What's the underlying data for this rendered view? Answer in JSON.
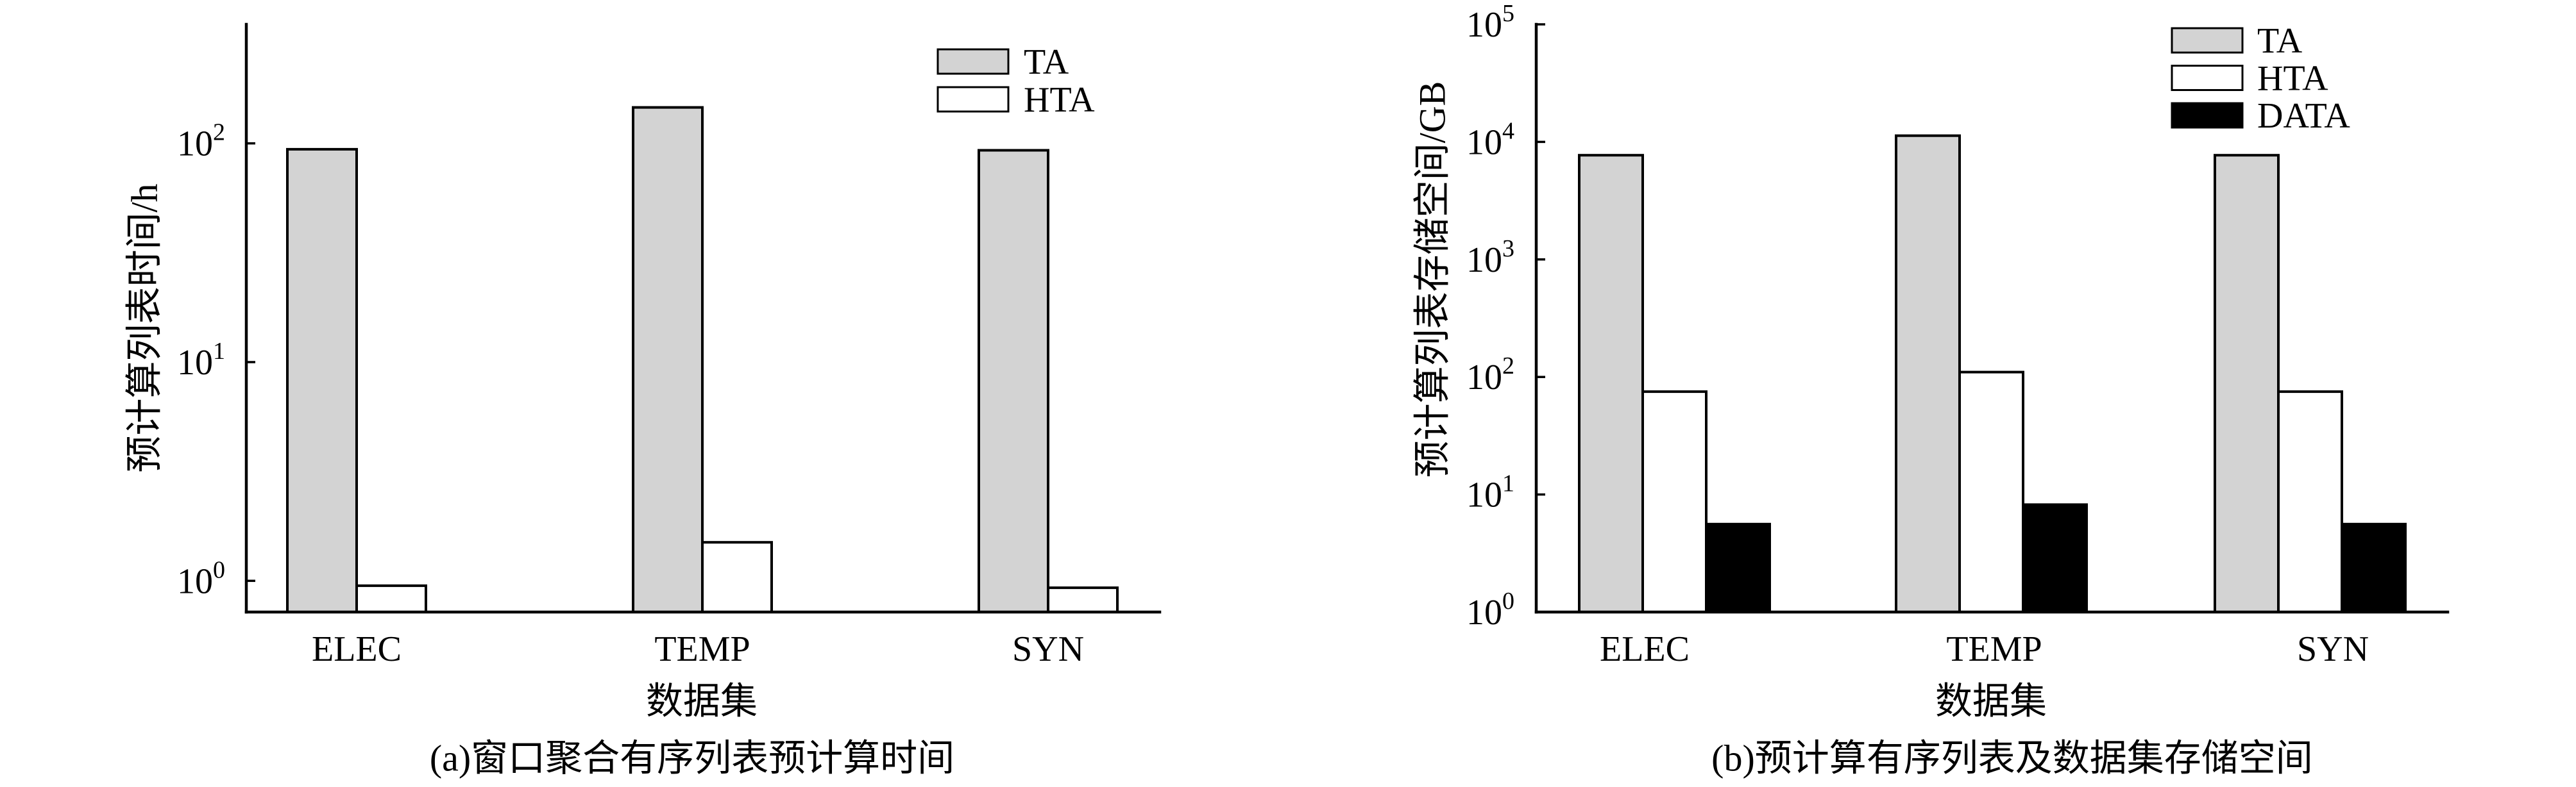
{
  "chart_data": [
    {
      "type": "bar",
      "caption": "(a)窗口聚合有序列表预计算时间",
      "xlabel": "数据集",
      "ylabel": "预计算列表时间/h",
      "yscale": "log",
      "ylim": [
        0.72,
        350
      ],
      "yticks": [
        {
          "value": 1,
          "base": "10",
          "exp": "0"
        },
        {
          "value": 10,
          "base": "10",
          "exp": "1"
        },
        {
          "value": 100,
          "base": "10",
          "exp": "2"
        }
      ],
      "categories": [
        "ELEC",
        "TEMP",
        "SYN"
      ],
      "series": [
        {
          "name": "TA",
          "color": "#d3d3d3",
          "values": [
            94,
            146,
            93
          ]
        },
        {
          "name": "HTA",
          "color": "#ffffff",
          "values": [
            0.95,
            1.5,
            0.93
          ]
        }
      ],
      "edgecolor": "#000000",
      "legend": "top-right",
      "grid": false
    },
    {
      "type": "bar",
      "caption": "(b)预计算有序列表及数据集存储空间",
      "xlabel": "数据集",
      "ylabel": "预计算列表存储空间/GB",
      "yscale": "log",
      "ylim": [
        1,
        100000
      ],
      "yticks": [
        {
          "value": 1,
          "base": "10",
          "exp": "0"
        },
        {
          "value": 10,
          "base": "10",
          "exp": "1"
        },
        {
          "value": 100,
          "base": "10",
          "exp": "2"
        },
        {
          "value": 1000,
          "base": "10",
          "exp": "3"
        },
        {
          "value": 10000,
          "base": "10",
          "exp": "4"
        },
        {
          "value": 100000,
          "base": "10",
          "exp": "5"
        }
      ],
      "categories": [
        "ELEC",
        "TEMP",
        "SYN"
      ],
      "series": [
        {
          "name": "TA",
          "color": "#d3d3d3",
          "values": [
            7700,
            11300,
            7700
          ]
        },
        {
          "name": "HTA",
          "color": "#ffffff",
          "values": [
            75,
            110,
            75
          ]
        },
        {
          "name": "DATA",
          "color": "#000000",
          "values": [
            5.6,
            8.2,
            5.6
          ]
        }
      ],
      "edgecolor": "#000000",
      "legend": "top-right",
      "grid": false
    }
  ]
}
